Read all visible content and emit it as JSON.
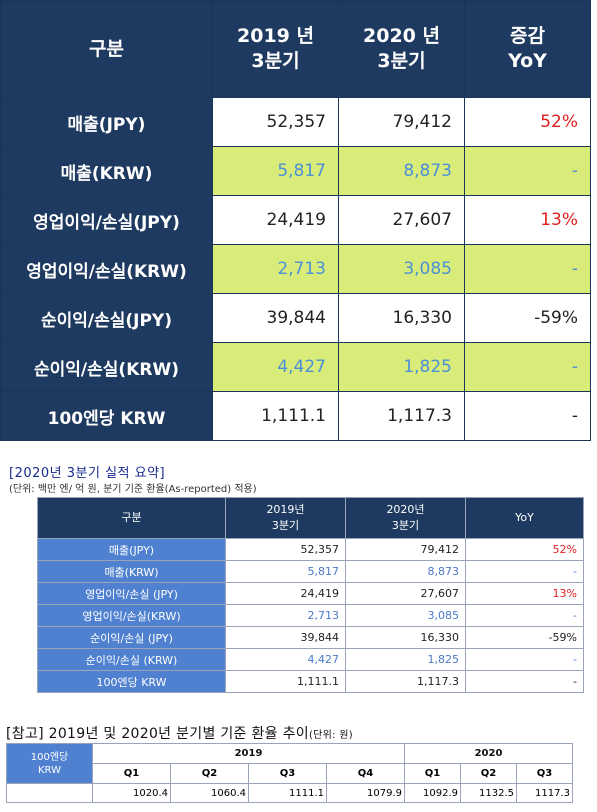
{
  "main_table": {
    "headers": [
      "구분",
      "2019 년\n3분기",
      "2020 년\n3분기",
      "증감\nYoY"
    ],
    "rows": [
      {
        "label": "매출(JPY)",
        "v2019": "52,357",
        "v2020": "79,412",
        "yoy": "52%"
      },
      {
        "label": "매출(KRW)",
        "v2019": "5,817",
        "v2020": "8,873",
        "yoy": "-"
      },
      {
        "label": "영업이익/손실(JPY)",
        "v2019": "24,419",
        "v2020": "27,607",
        "yoy": "13%"
      },
      {
        "label": "영업이익/손실(KRW)",
        "v2019": "2,713",
        "v2020": "3,085",
        "yoy": "-"
      },
      {
        "label": "순이익/손실(JPY)",
        "v2019": "39,844",
        "v2020": "16,330",
        "yoy": "-59%"
      },
      {
        "label": "순이익/손실(KRW)",
        "v2019": "4,427",
        "v2020": "1,825",
        "yoy": "-"
      },
      {
        "label": "100엔당 KRW",
        "v2019": "1,111.1",
        "v2020": "1,117.3",
        "yoy": "-"
      }
    ]
  },
  "summary": {
    "title": "[2020년 3분기 실적 요약]",
    "unit": "(단위: 백만 엔/ 억 원, 분기 기준 환율(As-reported) 적용)",
    "headers": [
      "구분",
      "2019년\n3분기",
      "2020년\n3분기",
      "YoY"
    ],
    "rows": [
      {
        "label": "매출(JPY)",
        "v2019": "52,357",
        "v2020": "79,412",
        "yoy": "52%"
      },
      {
        "label": "매출(KRW)",
        "v2019": "5,817",
        "v2020": "8,873",
        "yoy": "-"
      },
      {
        "label": "영업이익/손실 (JPY)",
        "v2019": "24,419",
        "v2020": "27,607",
        "yoy": "13%"
      },
      {
        "label": "영업이익/손실(KRW)",
        "v2019": "2,713",
        "v2020": "3,085",
        "yoy": "-"
      },
      {
        "label": "순이익/손실 (JPY)",
        "v2019": "39,844",
        "v2020": "16,330",
        "yoy": "-59%"
      },
      {
        "label": "순이익/손실 (KRW)",
        "v2019": "4,427",
        "v2020": "1,825",
        "yoy": "-"
      },
      {
        "label": "100엔당 KRW",
        "v2019": "1,111.1",
        "v2020": "1,117.3",
        "yoy": "-"
      }
    ]
  },
  "reference": {
    "title": "[참고] 2019년 및 2020년 분기별 기준 환율 추이",
    "unit": "(단위: 원)",
    "corner": "100엔당\nKRW",
    "year_2019": "2019",
    "year_2020": "2020",
    "quarters": [
      "Q1",
      "Q2",
      "Q3",
      "Q4",
      "Q1",
      "Q2",
      "Q3"
    ],
    "values": [
      "1020.4",
      "1060.4",
      "1111.1",
      "1079.9",
      "1092.9",
      "1132.5",
      "1117.3"
    ]
  },
  "colors": {
    "navy": "#1f3a60",
    "lime": "#d9ec7a",
    "blue_text": "#4b8fd6",
    "red": "#e02020",
    "label_blue": "#4f81d0"
  }
}
